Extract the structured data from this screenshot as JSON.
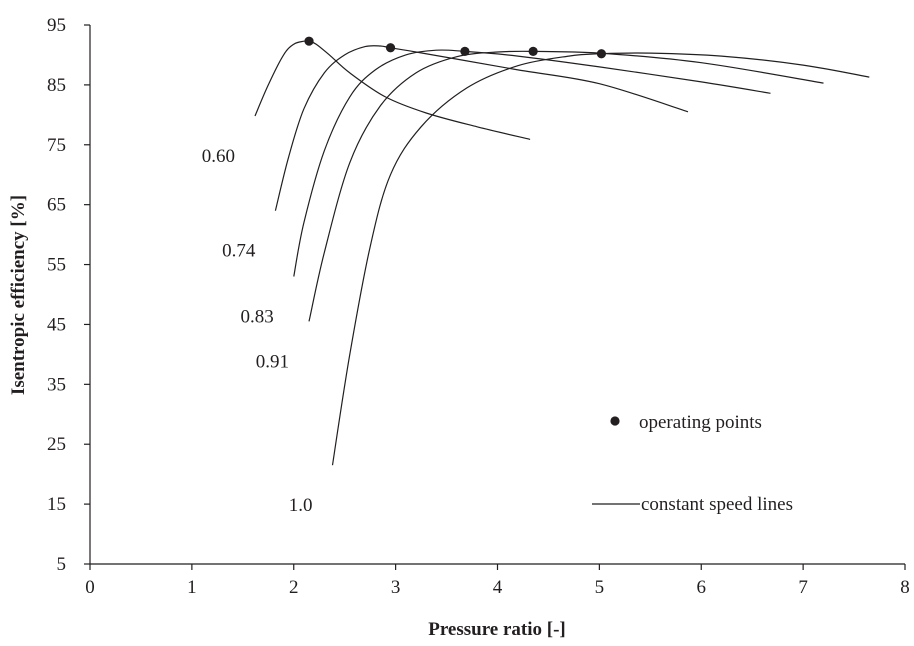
{
  "chart_data": {
    "type": "line",
    "xlabel": "Pressure ratio [-]",
    "ylabel": "Isentropic efficiency [%]",
    "xlim": [
      0,
      8
    ],
    "ylim": [
      5,
      95
    ],
    "x_ticks": [
      0,
      1,
      2,
      3,
      4,
      5,
      6,
      7,
      8
    ],
    "y_ticks": [
      5,
      15,
      25,
      35,
      45,
      55,
      65,
      75,
      85,
      95
    ],
    "grid": false,
    "legend_position": "bottom-right",
    "legend": {
      "points_label": "operating points",
      "lines_label": "constant speed lines"
    },
    "series": [
      {
        "name": "0.60",
        "x": [
          1.62,
          1.75,
          1.9,
          2.0,
          2.1,
          2.15,
          2.22,
          2.35,
          2.55,
          2.9,
          3.3,
          3.8,
          4.32
        ],
        "y": [
          79.8,
          85,
          90,
          91.8,
          92.3,
          92.3,
          91.8,
          90,
          87,
          83,
          80.3,
          78,
          75.9
        ]
      },
      {
        "name": "0.74",
        "x": [
          1.82,
          1.95,
          2.1,
          2.3,
          2.5,
          2.7,
          2.85,
          2.95,
          3.2,
          3.6,
          4.2,
          5.0,
          5.87
        ],
        "y": [
          64,
          73,
          81,
          87,
          90,
          91.4,
          91.5,
          91.2,
          90.5,
          89.3,
          87.5,
          85.2,
          80.5
        ]
      },
      {
        "name": "0.83",
        "x": [
          2.0,
          2.1,
          2.3,
          2.55,
          2.8,
          3.1,
          3.4,
          3.68,
          4.2,
          5.0,
          6.0,
          6.68
        ],
        "y": [
          53,
          62,
          74,
          83,
          87.5,
          90,
          90.8,
          90.6,
          89.8,
          88,
          85.5,
          83.6
        ]
      },
      {
        "name": "0.91",
        "x": [
          2.15,
          2.3,
          2.55,
          2.85,
          3.2,
          3.6,
          4.0,
          4.35,
          5.0,
          6.0,
          7.2
        ],
        "y": [
          45.5,
          57,
          72,
          81.5,
          87,
          89.7,
          90.5,
          90.6,
          90.3,
          88.7,
          85.3
        ]
      },
      {
        "name": "1.0",
        "x": [
          2.38,
          2.55,
          2.75,
          2.95,
          3.25,
          3.7,
          4.2,
          4.7,
          5.02,
          5.5,
          6.2,
          7.0,
          7.65
        ],
        "y": [
          21.5,
          40,
          58,
          70,
          78,
          84.5,
          88.2,
          89.8,
          90.2,
          90.3,
          89.8,
          88.3,
          86.3
        ]
      }
    ],
    "operating_points": {
      "x": [
        2.15,
        2.95,
        3.68,
        4.35,
        5.02
      ],
      "y": [
        92.3,
        91.2,
        90.6,
        90.6,
        90.2
      ]
    }
  }
}
